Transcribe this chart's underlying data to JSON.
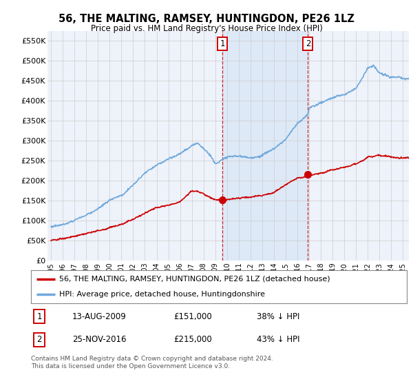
{
  "title": "56, THE MALTING, RAMSEY, HUNTINGDON, PE26 1LZ",
  "subtitle": "Price paid vs. HM Land Registry's House Price Index (HPI)",
  "ylabel_ticks": [
    "£0",
    "£50K",
    "£100K",
    "£150K",
    "£200K",
    "£250K",
    "£300K",
    "£350K",
    "£400K",
    "£450K",
    "£500K",
    "£550K"
  ],
  "ytick_values": [
    0,
    50000,
    100000,
    150000,
    200000,
    250000,
    300000,
    350000,
    400000,
    450000,
    500000,
    550000
  ],
  "ylim": [
    0,
    575000
  ],
  "xlim_start": 1994.7,
  "xlim_end": 2025.5,
  "hpi_color": "#6fa8dc",
  "hpi_shade_color": "#dce9f7",
  "price_color": "#cc0000",
  "marker1_year": 2009.617,
  "marker2_year": 2016.9,
  "marker1_price": 151000,
  "marker2_price": 215000,
  "legend_label_price": "56, THE MALTING, RAMSEY, HUNTINGDON, PE26 1LZ (detached house)",
  "legend_label_hpi": "HPI: Average price, detached house, Huntingdonshire",
  "table_row1": [
    "1",
    "13-AUG-2009",
    "£151,000",
    "38% ↓ HPI"
  ],
  "table_row2": [
    "2",
    "25-NOV-2016",
    "£215,000",
    "43% ↓ HPI"
  ],
  "footnote": "Contains HM Land Registry data © Crown copyright and database right 2024.\nThis data is licensed under the Open Government Licence v3.0.",
  "background_color": "#ffffff",
  "plot_bg_color": "#eef2fa"
}
